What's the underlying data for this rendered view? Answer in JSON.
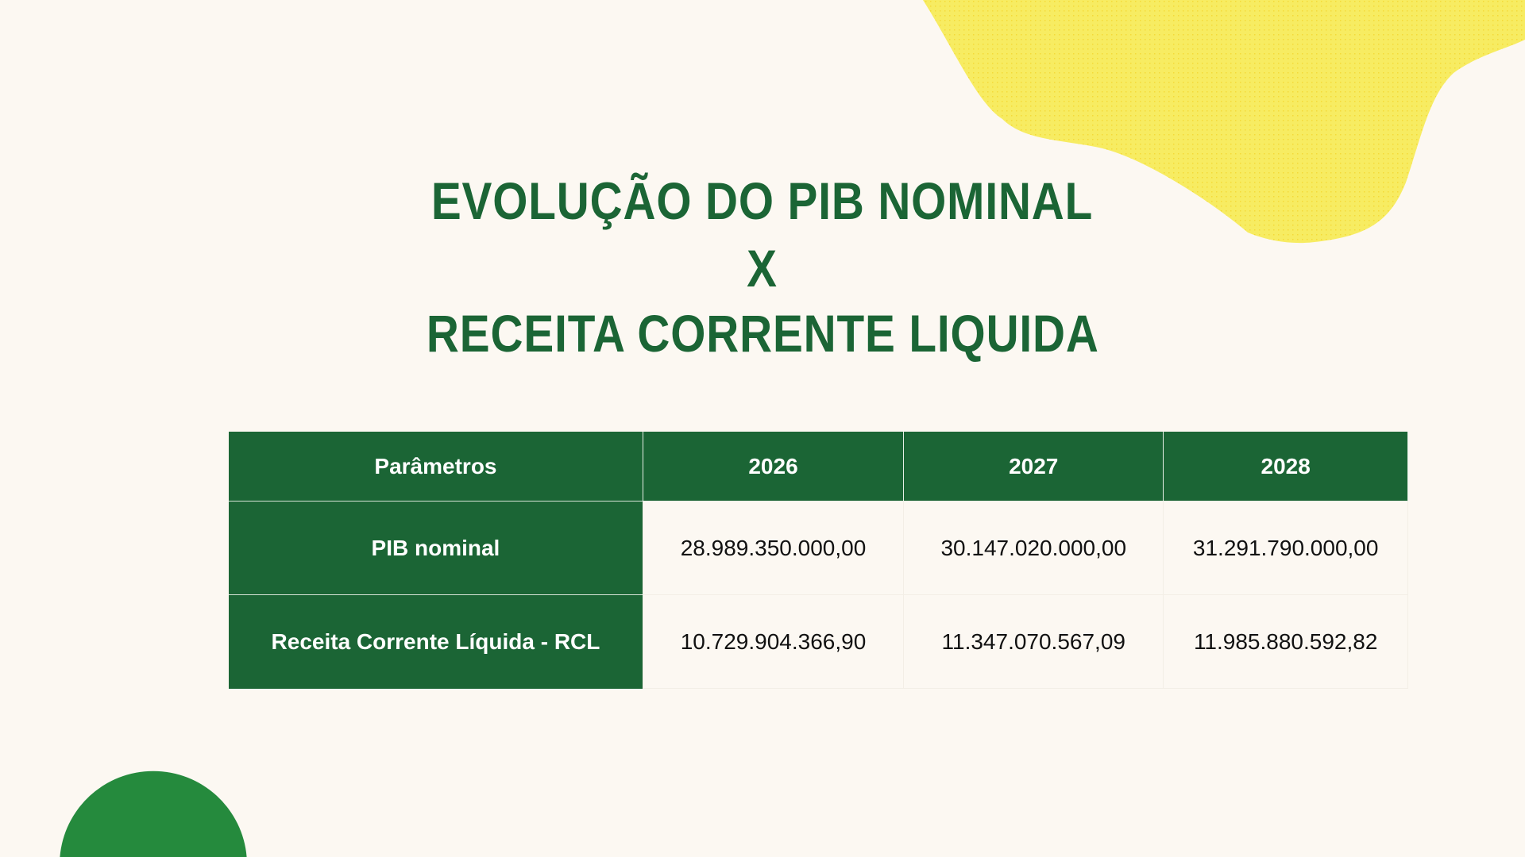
{
  "title": {
    "line1": "EVOLUÇÃO DO PIB NOMINAL",
    "line2": "X",
    "line3": "RECEITA CORRENTE LIQUIDA"
  },
  "colors": {
    "green": "#1b6535",
    "yellow": "#f7ec62",
    "background": "#fcf8f2",
    "circle": "#258a3d"
  },
  "table": {
    "headers": [
      "Parâmetros",
      "2026",
      "2027",
      "2028"
    ],
    "rows": [
      {
        "label": "PIB nominal",
        "values": [
          "28.989.350.000,00",
          "30.147.020.000,00",
          "31.291.790.000,00"
        ]
      },
      {
        "label": "Receita Corrente Líquida - RCL",
        "values": [
          "10.729.904.366,90",
          "11.347.070.567,09",
          "11.985.880.592,82"
        ]
      }
    ]
  }
}
